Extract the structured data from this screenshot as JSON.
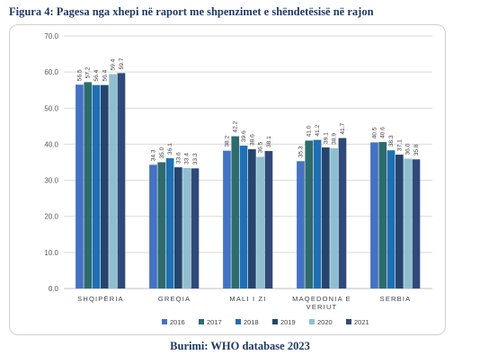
{
  "figure_title": "Figura 4: Pagesa nga xhepi në raport me shpenzimet e shëndetësisë në rajon",
  "source": "Burimi: WHO database 2023",
  "chart_data": {
    "type": "bar",
    "title": "",
    "xlabel": "",
    "ylabel": "",
    "ylim": [
      0,
      70
    ],
    "yticks": [
      "0.0",
      "10.0",
      "20.0",
      "30.0",
      "40.0",
      "50.0",
      "60.0",
      "70.0"
    ],
    "grid": true,
    "legend_position": "bottom",
    "categories": [
      [
        "SHQIPËRIA"
      ],
      [
        "GREQIA"
      ],
      [
        "MALI I ZI"
      ],
      [
        "MAQEDONIA E",
        "VERIUT"
      ],
      [
        "SERBIA"
      ]
    ],
    "series": [
      {
        "name": "2016",
        "color": "#4472c4",
        "values": [
          56.5,
          34.3,
          38.2,
          35.3,
          40.5
        ],
        "labels": [
          "56.5",
          "34.3",
          "38.2",
          "35.3",
          "40.5"
        ]
      },
      {
        "name": "2017",
        "color": "#2e6b6e",
        "values": [
          57.2,
          35.0,
          42.2,
          41.0,
          40.6
        ],
        "labels": [
          "57.2",
          "35.0",
          "42.2",
          "41.0",
          "40.6"
        ]
      },
      {
        "name": "2018",
        "color": "#1f6fb4",
        "values": [
          56.4,
          36.1,
          39.6,
          41.2,
          38.3
        ],
        "labels": [
          "56.4",
          "36.1",
          "39.6",
          "41.2",
          "38.3"
        ]
      },
      {
        "name": "2019",
        "color": "#26456e",
        "values": [
          56.4,
          33.6,
          38.6,
          39.1,
          37.1
        ],
        "labels": [
          "56.4",
          "33.6",
          "38.6",
          "39.1",
          "37.1"
        ]
      },
      {
        "name": "2020",
        "color": "#8fbfcf",
        "values": [
          59.4,
          33.4,
          36.5,
          38.9,
          36.0
        ],
        "labels": [
          "59.4",
          "33.4",
          "36.5",
          "38.9",
          "36.0"
        ]
      },
      {
        "name": "2021",
        "color": "#2f4a7a",
        "values": [
          59.7,
          33.3,
          38.1,
          41.7,
          35.8
        ],
        "labels": [
          "59.7",
          "33.3",
          "38.1",
          "41.7",
          "35.8"
        ]
      }
    ]
  }
}
